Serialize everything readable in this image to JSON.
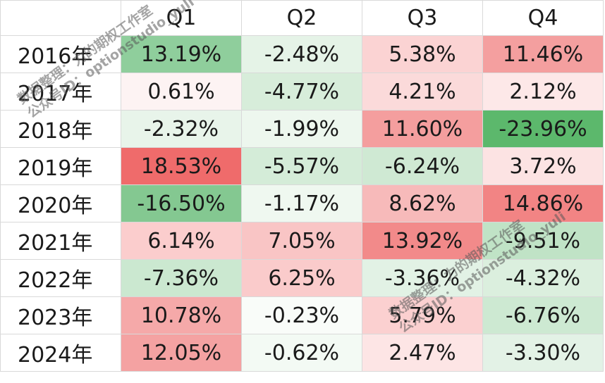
{
  "chart_data": {
    "type": "heatmap",
    "columns": [
      "Q1",
      "Q2",
      "Q3",
      "Q4"
    ],
    "rows": [
      {
        "label": "2016年",
        "values": [
          13.19,
          -2.48,
          5.38,
          11.46
        ],
        "display": [
          "13.19%",
          "-2.48%",
          "5.38%",
          "11.46%"
        ],
        "colors": [
          "#8fce9c",
          "#e5f3e7",
          "#fbd3d3",
          "#f49f9f"
        ]
      },
      {
        "label": "2017年",
        "values": [
          0.61,
          -4.77,
          4.21,
          2.12
        ],
        "display": [
          "0.61%",
          "-4.77%",
          "4.21%",
          "2.12%"
        ],
        "colors": [
          "#fdf3f3",
          "#d7edda",
          "#fbdada",
          "#fde8e8"
        ]
      },
      {
        "label": "2018年",
        "values": [
          -2.32,
          -1.99,
          11.6,
          -23.96
        ],
        "display": [
          "-2.32%",
          "-1.99%",
          "11.60%",
          "-23.96%"
        ],
        "colors": [
          "#e8f4ea",
          "#edf7ee",
          "#f49e9e",
          "#5cb86c"
        ]
      },
      {
        "label": "2019年",
        "values": [
          18.53,
          -5.57,
          -6.24,
          3.72
        ],
        "display": [
          "18.53%",
          "-5.57%",
          "-6.24%",
          "3.72%"
        ],
        "colors": [
          "#ef6b6b",
          "#d4ecd8",
          "#cfe9d3",
          "#fce3e3"
        ]
      },
      {
        "label": "2020年",
        "values": [
          -16.5,
          -1.17,
          8.62,
          14.86
        ],
        "display": [
          "-16.50%",
          "-1.17%",
          "8.62%",
          "14.86%"
        ],
        "colors": [
          "#84c891",
          "#eff8f0",
          "#f7baba",
          "#f28484"
        ]
      },
      {
        "label": "2021年",
        "values": [
          6.14,
          7.05,
          13.92,
          -9.51
        ],
        "display": [
          "6.14%",
          "7.05%",
          "13.92%",
          "-9.51%"
        ],
        "colors": [
          "#fbcdcd",
          "#f9c5c5",
          "#f28a8a",
          "#c0e3c6"
        ]
      },
      {
        "label": "2022年",
        "values": [
          -7.36,
          6.25,
          -3.36,
          -4.32
        ],
        "display": [
          "-7.36%",
          "6.25%",
          "-3.36%",
          "-4.32%"
        ],
        "colors": [
          "#cbe8d0",
          "#facbcb",
          "#e2f2e5",
          "#dbefde"
        ]
      },
      {
        "label": "2023年",
        "values": [
          10.78,
          -0.23,
          5.79,
          -6.76
        ],
        "display": [
          "10.78%",
          "-0.23%",
          "5.79%",
          "-6.76%"
        ],
        "colors": [
          "#f5a9a9",
          "#f9fcf9",
          "#fbd0d0",
          "#cde9d2"
        ]
      },
      {
        "label": "2024年",
        "values": [
          12.05,
          -0.62,
          2.47,
          -3.3
        ],
        "display": [
          "12.05%",
          "-0.62%",
          "2.47%",
          "-3.30%"
        ],
        "colors": [
          "#f4a2a2",
          "#f3faf4",
          "#fde5e5",
          "#e3f2e6"
        ]
      }
    ],
    "colors": {
      "positive": "#ef6b6b",
      "negative": "#5cb86c",
      "neutral": "#ffffff",
      "grid": "#d9d9d9"
    }
  },
  "watermarks": [
    {
      "line1": "数据整理：力的期权工作室",
      "line2": "公众号ID：optionstudio_yuli"
    },
    {
      "line1": "数据整理：力的期权工作室",
      "line2": "公众号ID：optionstudio_yuli"
    }
  ]
}
